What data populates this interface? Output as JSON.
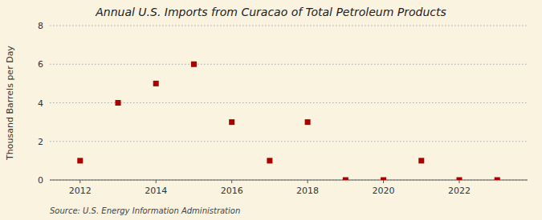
{
  "chart_data": {
    "type": "scatter",
    "title": "Annual U.S. Imports from Curacao of Total Petroleum Products",
    "ylabel": "Thousand Barrels per Day",
    "annotations": [
      "Source: U.S. Energy Information Administration"
    ],
    "x": [
      2012,
      2013,
      2014,
      2015,
      2016,
      2017,
      2018,
      2019,
      2020,
      2021,
      2022,
      2023
    ],
    "values": [
      1,
      4,
      5,
      6,
      3,
      1,
      3,
      0,
      0,
      1,
      0,
      0
    ],
    "color": "#aa0000",
    "marker": "square",
    "xlim": [
      2011.2,
      2023.8
    ],
    "ylim": [
      0,
      8
    ],
    "xticks": [
      2012,
      2014,
      2016,
      2018,
      2020,
      2022
    ],
    "yticks": [
      0,
      2,
      4,
      6,
      8
    ],
    "grid": true
  }
}
